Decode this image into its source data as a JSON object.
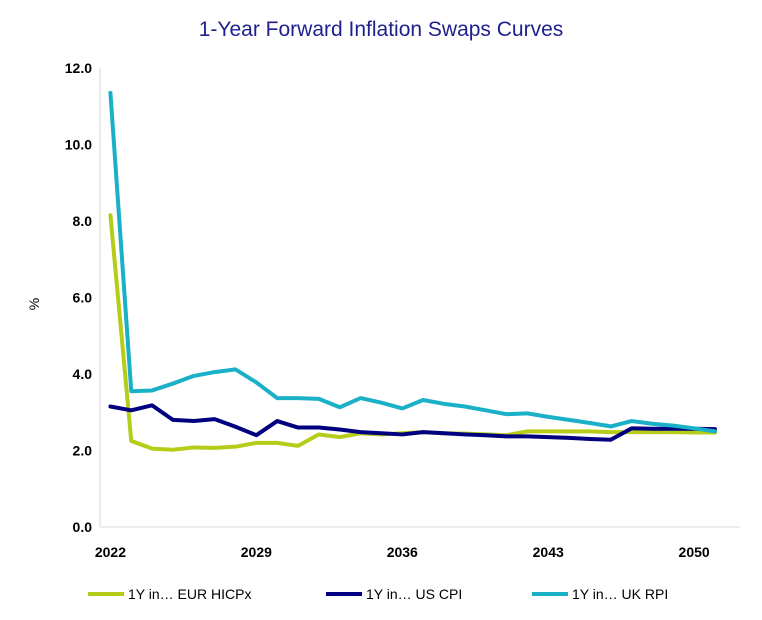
{
  "chart_data": {
    "type": "line",
    "title": "1-Year Forward Inflation Swaps Curves",
    "ylabel": "%",
    "xlabel": "",
    "ylim": [
      0,
      12
    ],
    "y_ticks": [
      "0.0",
      "2.0",
      "4.0",
      "6.0",
      "8.0",
      "10.0",
      "12.0"
    ],
    "x_ticks": [
      "2022",
      "2029",
      "2036",
      "2043",
      "2050"
    ],
    "xlim": [
      2021.5,
      2052.2
    ],
    "grid": false,
    "legend_position": "bottom",
    "x": [
      2022,
      2023,
      2024,
      2025,
      2026,
      2027,
      2028,
      2029,
      2030,
      2031,
      2032,
      2033,
      2034,
      2035,
      2036,
      2037,
      2038,
      2039,
      2040,
      2041,
      2042,
      2043,
      2044,
      2045,
      2046,
      2047,
      2048,
      2049,
      2050,
      2051
    ],
    "series": [
      {
        "name": "1Y in… EUR HICPx",
        "color": "#b5cc18",
        "values": [
          8.15,
          2.25,
          2.05,
          2.02,
          2.08,
          2.07,
          2.1,
          2.2,
          2.2,
          2.12,
          2.42,
          2.35,
          2.45,
          2.42,
          2.45,
          2.48,
          2.45,
          2.44,
          2.42,
          2.4,
          2.5,
          2.5,
          2.5,
          2.5,
          2.48,
          2.48,
          2.48,
          2.48,
          2.47,
          2.47
        ]
      },
      {
        "name": "1Y in… US CPI",
        "color": "#000080",
        "values": [
          3.15,
          3.05,
          3.18,
          2.8,
          2.77,
          2.82,
          2.62,
          2.4,
          2.77,
          2.6,
          2.6,
          2.55,
          2.48,
          2.45,
          2.42,
          2.48,
          2.45,
          2.42,
          2.4,
          2.37,
          2.37,
          2.35,
          2.33,
          2.3,
          2.28,
          2.58,
          2.57,
          2.57,
          2.57,
          2.56
        ]
      },
      {
        "name": "1Y in… UK RPI",
        "color": "#1ab0c8",
        "values": [
          11.35,
          3.55,
          3.57,
          3.75,
          3.95,
          4.05,
          4.12,
          3.78,
          3.37,
          3.37,
          3.35,
          3.13,
          3.37,
          3.25,
          3.1,
          3.32,
          3.22,
          3.15,
          3.05,
          2.95,
          2.97,
          2.88,
          2.8,
          2.72,
          2.63,
          2.77,
          2.7,
          2.65,
          2.58,
          2.5
        ]
      }
    ]
  }
}
